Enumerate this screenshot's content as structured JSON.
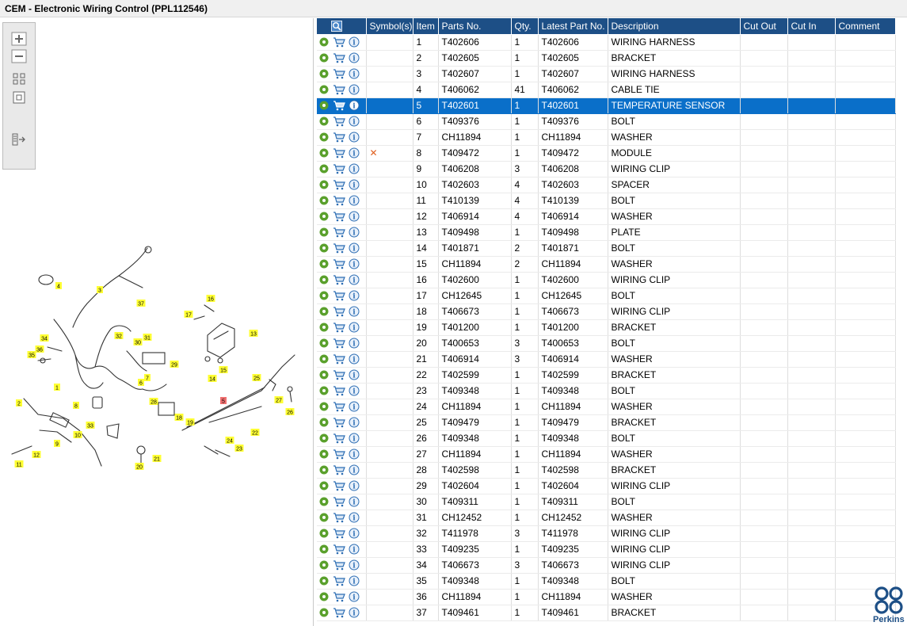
{
  "window": {
    "title": "CEM - Electronic Wiring Control (PPL112546)"
  },
  "toolbar": {
    "tools": [
      "zoom-in-icon",
      "zoom-out-icon",
      "fit-page-icon",
      "actual-size-icon",
      "toggle-panel-icon"
    ]
  },
  "diagram": {
    "callouts": [
      {
        "n": "1",
        "highlight": false
      },
      {
        "n": "2",
        "highlight": false
      },
      {
        "n": "3",
        "highlight": false
      },
      {
        "n": "4",
        "highlight": false
      },
      {
        "n": "5",
        "highlight": true
      },
      {
        "n": "6",
        "highlight": false
      },
      {
        "n": "7",
        "highlight": false
      },
      {
        "n": "8",
        "highlight": false
      },
      {
        "n": "9",
        "highlight": false
      },
      {
        "n": "10",
        "highlight": false
      },
      {
        "n": "11",
        "highlight": false
      },
      {
        "n": "12",
        "highlight": false
      },
      {
        "n": "13",
        "highlight": false
      },
      {
        "n": "14",
        "highlight": false
      },
      {
        "n": "15",
        "highlight": false
      },
      {
        "n": "16",
        "highlight": false
      },
      {
        "n": "17",
        "highlight": false
      },
      {
        "n": "18",
        "highlight": false
      },
      {
        "n": "19",
        "highlight": false
      },
      {
        "n": "20",
        "highlight": false
      },
      {
        "n": "21",
        "highlight": false
      },
      {
        "n": "22",
        "highlight": false
      },
      {
        "n": "23",
        "highlight": false
      },
      {
        "n": "24",
        "highlight": false
      },
      {
        "n": "25",
        "highlight": false
      },
      {
        "n": "26",
        "highlight": false
      },
      {
        "n": "27",
        "highlight": false
      },
      {
        "n": "28",
        "highlight": false
      },
      {
        "n": "29",
        "highlight": false
      },
      {
        "n": "30",
        "highlight": false
      },
      {
        "n": "31",
        "highlight": false
      },
      {
        "n": "32",
        "highlight": false
      },
      {
        "n": "33",
        "highlight": false
      },
      {
        "n": "34",
        "highlight": false
      },
      {
        "n": "35",
        "highlight": false
      },
      {
        "n": "36",
        "highlight": false
      },
      {
        "n": "37",
        "highlight": false
      }
    ]
  },
  "table": {
    "columns": [
      "",
      "Symbol(s)",
      "Item",
      "Parts No.",
      "Qty.",
      "Latest Part No.",
      "Description",
      "Cut Out",
      "Cut In",
      "Comment"
    ],
    "header_icon": "search-icon",
    "selected_item": "5",
    "rows": [
      {
        "symbol": "",
        "item": "1",
        "part": "T402606",
        "qty": "1",
        "latest": "T402606",
        "desc": "WIRING HARNESS",
        "cut_out": "",
        "cut_in": "",
        "comment": ""
      },
      {
        "symbol": "",
        "item": "2",
        "part": "T402605",
        "qty": "1",
        "latest": "T402605",
        "desc": "BRACKET",
        "cut_out": "",
        "cut_in": "",
        "comment": ""
      },
      {
        "symbol": "",
        "item": "3",
        "part": "T402607",
        "qty": "1",
        "latest": "T402607",
        "desc": "WIRING HARNESS",
        "cut_out": "",
        "cut_in": "",
        "comment": ""
      },
      {
        "symbol": "",
        "item": "4",
        "part": "T406062",
        "qty": "41",
        "latest": "T406062",
        "desc": "CABLE TIE",
        "cut_out": "",
        "cut_in": "",
        "comment": ""
      },
      {
        "symbol": "",
        "item": "5",
        "part": "T402601",
        "qty": "1",
        "latest": "T402601",
        "desc": "TEMPERATURE SENSOR",
        "cut_out": "",
        "cut_in": "",
        "comment": ""
      },
      {
        "symbol": "",
        "item": "6",
        "part": "T409376",
        "qty": "1",
        "latest": "T409376",
        "desc": "BOLT",
        "cut_out": "",
        "cut_in": "",
        "comment": ""
      },
      {
        "symbol": "",
        "item": "7",
        "part": "CH11894",
        "qty": "1",
        "latest": "CH11894",
        "desc": "WASHER",
        "cut_out": "",
        "cut_in": "",
        "comment": ""
      },
      {
        "symbol": "✕",
        "item": "8",
        "part": "T409472",
        "qty": "1",
        "latest": "T409472",
        "desc": "MODULE",
        "cut_out": "",
        "cut_in": "",
        "comment": ""
      },
      {
        "symbol": "",
        "item": "9",
        "part": "T406208",
        "qty": "3",
        "latest": "T406208",
        "desc": "WIRING CLIP",
        "cut_out": "",
        "cut_in": "",
        "comment": ""
      },
      {
        "symbol": "",
        "item": "10",
        "part": "T402603",
        "qty": "4",
        "latest": "T402603",
        "desc": "SPACER",
        "cut_out": "",
        "cut_in": "",
        "comment": ""
      },
      {
        "symbol": "",
        "item": "11",
        "part": "T410139",
        "qty": "4",
        "latest": "T410139",
        "desc": "BOLT",
        "cut_out": "",
        "cut_in": "",
        "comment": ""
      },
      {
        "symbol": "",
        "item": "12",
        "part": "T406914",
        "qty": "4",
        "latest": "T406914",
        "desc": "WASHER",
        "cut_out": "",
        "cut_in": "",
        "comment": ""
      },
      {
        "symbol": "",
        "item": "13",
        "part": "T409498",
        "qty": "1",
        "latest": "T409498",
        "desc": "PLATE",
        "cut_out": "",
        "cut_in": "",
        "comment": ""
      },
      {
        "symbol": "",
        "item": "14",
        "part": "T401871",
        "qty": "2",
        "latest": "T401871",
        "desc": "BOLT",
        "cut_out": "",
        "cut_in": "",
        "comment": ""
      },
      {
        "symbol": "",
        "item": "15",
        "part": "CH11894",
        "qty": "2",
        "latest": "CH11894",
        "desc": "WASHER",
        "cut_out": "",
        "cut_in": "",
        "comment": ""
      },
      {
        "symbol": "",
        "item": "16",
        "part": "T402600",
        "qty": "1",
        "latest": "T402600",
        "desc": "WIRING CLIP",
        "cut_out": "",
        "cut_in": "",
        "comment": ""
      },
      {
        "symbol": "",
        "item": "17",
        "part": "CH12645",
        "qty": "1",
        "latest": "CH12645",
        "desc": "BOLT",
        "cut_out": "",
        "cut_in": "",
        "comment": ""
      },
      {
        "symbol": "",
        "item": "18",
        "part": "T406673",
        "qty": "1",
        "latest": "T406673",
        "desc": "WIRING CLIP",
        "cut_out": "",
        "cut_in": "",
        "comment": ""
      },
      {
        "symbol": "",
        "item": "19",
        "part": "T401200",
        "qty": "1",
        "latest": "T401200",
        "desc": "BRACKET",
        "cut_out": "",
        "cut_in": "",
        "comment": ""
      },
      {
        "symbol": "",
        "item": "20",
        "part": "T400653",
        "qty": "3",
        "latest": "T400653",
        "desc": "BOLT",
        "cut_out": "",
        "cut_in": "",
        "comment": ""
      },
      {
        "symbol": "",
        "item": "21",
        "part": "T406914",
        "qty": "3",
        "latest": "T406914",
        "desc": "WASHER",
        "cut_out": "",
        "cut_in": "",
        "comment": ""
      },
      {
        "symbol": "",
        "item": "22",
        "part": "T402599",
        "qty": "1",
        "latest": "T402599",
        "desc": "BRACKET",
        "cut_out": "",
        "cut_in": "",
        "comment": ""
      },
      {
        "symbol": "",
        "item": "23",
        "part": "T409348",
        "qty": "1",
        "latest": "T409348",
        "desc": "BOLT",
        "cut_out": "",
        "cut_in": "",
        "comment": ""
      },
      {
        "symbol": "",
        "item": "24",
        "part": "CH11894",
        "qty": "1",
        "latest": "CH11894",
        "desc": "WASHER",
        "cut_out": "",
        "cut_in": "",
        "comment": ""
      },
      {
        "symbol": "",
        "item": "25",
        "part": "T409479",
        "qty": "1",
        "latest": "T409479",
        "desc": "BRACKET",
        "cut_out": "",
        "cut_in": "",
        "comment": ""
      },
      {
        "symbol": "",
        "item": "26",
        "part": "T409348",
        "qty": "1",
        "latest": "T409348",
        "desc": "BOLT",
        "cut_out": "",
        "cut_in": "",
        "comment": ""
      },
      {
        "symbol": "",
        "item": "27",
        "part": "CH11894",
        "qty": "1",
        "latest": "CH11894",
        "desc": "WASHER",
        "cut_out": "",
        "cut_in": "",
        "comment": ""
      },
      {
        "symbol": "",
        "item": "28",
        "part": "T402598",
        "qty": "1",
        "latest": "T402598",
        "desc": "BRACKET",
        "cut_out": "",
        "cut_in": "",
        "comment": ""
      },
      {
        "symbol": "",
        "item": "29",
        "part": "T402604",
        "qty": "1",
        "latest": "T402604",
        "desc": "WIRING CLIP",
        "cut_out": "",
        "cut_in": "",
        "comment": ""
      },
      {
        "symbol": "",
        "item": "30",
        "part": "T409311",
        "qty": "1",
        "latest": "T409311",
        "desc": "BOLT",
        "cut_out": "",
        "cut_in": "",
        "comment": ""
      },
      {
        "symbol": "",
        "item": "31",
        "part": "CH12452",
        "qty": "1",
        "latest": "CH12452",
        "desc": "WASHER",
        "cut_out": "",
        "cut_in": "",
        "comment": ""
      },
      {
        "symbol": "",
        "item": "32",
        "part": "T411978",
        "qty": "3",
        "latest": "T411978",
        "desc": "WIRING CLIP",
        "cut_out": "",
        "cut_in": "",
        "comment": ""
      },
      {
        "symbol": "",
        "item": "33",
        "part": "T409235",
        "qty": "1",
        "latest": "T409235",
        "desc": "WIRING CLIP",
        "cut_out": "",
        "cut_in": "",
        "comment": ""
      },
      {
        "symbol": "",
        "item": "34",
        "part": "T406673",
        "qty": "3",
        "latest": "T406673",
        "desc": "WIRING CLIP",
        "cut_out": "",
        "cut_in": "",
        "comment": ""
      },
      {
        "symbol": "",
        "item": "35",
        "part": "T409348",
        "qty": "1",
        "latest": "T409348",
        "desc": "BOLT",
        "cut_out": "",
        "cut_in": "",
        "comment": ""
      },
      {
        "symbol": "",
        "item": "36",
        "part": "CH11894",
        "qty": "1",
        "latest": "CH11894",
        "desc": "WASHER",
        "cut_out": "",
        "cut_in": "",
        "comment": ""
      },
      {
        "symbol": "",
        "item": "37",
        "part": "T409461",
        "qty": "1",
        "latest": "T409461",
        "desc": "BRACKET",
        "cut_out": "",
        "cut_in": "",
        "comment": ""
      }
    ],
    "row_icons": [
      "options-icon",
      "cart-icon",
      "info-icon"
    ]
  },
  "brand": {
    "name": "Perkins",
    "color": "#1d4f86"
  },
  "colors": {
    "header_bg": "#1d4f86",
    "selected_row": "#0a6fc9",
    "callout_yellow": "#ffff33",
    "callout_highlight": "#f07070",
    "options_green": "#5aa02c"
  }
}
